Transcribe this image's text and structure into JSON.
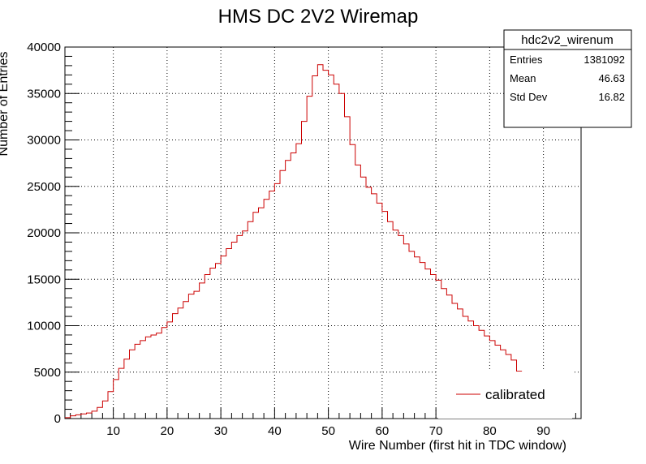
{
  "chart_data": {
    "type": "bar",
    "title": "HMS DC 2V2 Wiremap",
    "xlabel": "Wire Number (first hit in TDC window)",
    "ylabel": "Number of Entries",
    "xlim": [
      1,
      97
    ],
    "ylim": [
      0,
      40000
    ],
    "x_ticks": [
      10,
      20,
      30,
      40,
      50,
      60,
      70,
      80,
      90
    ],
    "y_ticks": [
      0,
      5000,
      10000,
      15000,
      20000,
      25000,
      30000,
      35000,
      40000
    ],
    "grid": true,
    "bin_width": 1,
    "series": [
      {
        "name": "calibrated",
        "color": "#cc0000",
        "bin_start": 1,
        "values": [
          100,
          300,
          400,
          500,
          600,
          800,
          1200,
          1900,
          2900,
          4200,
          5400,
          6400,
          7400,
          8000,
          8400,
          8800,
          9000,
          9200,
          9800,
          10400,
          11300,
          11900,
          12600,
          13400,
          13700,
          14600,
          15500,
          16200,
          16700,
          17500,
          18300,
          19000,
          19700,
          20200,
          21200,
          22200,
          22700,
          23600,
          24500,
          25300,
          26700,
          27800,
          28600,
          29600,
          32000,
          34700,
          36900,
          38100,
          37500,
          37000,
          36000,
          35000,
          32500,
          29500,
          27300,
          26000,
          24900,
          24200,
          23200,
          22300,
          21200,
          20300,
          19700,
          18800,
          18000,
          17400,
          16800,
          16100,
          15500,
          14900,
          14000,
          13300,
          12400,
          11800,
          11000,
          10500,
          10000,
          9500,
          8900,
          8400,
          7900,
          7400,
          6900,
          6300,
          5100
        ]
      }
    ],
    "legend": {
      "position": "bottom-right",
      "entries": [
        "calibrated"
      ]
    },
    "stats": {
      "name": "hdc2v2_wirenum",
      "rows": [
        {
          "label": "Entries",
          "value": "1381092"
        },
        {
          "label": "Mean",
          "value": "46.63"
        },
        {
          "label": "Std Dev",
          "value": "16.82"
        }
      ]
    }
  }
}
